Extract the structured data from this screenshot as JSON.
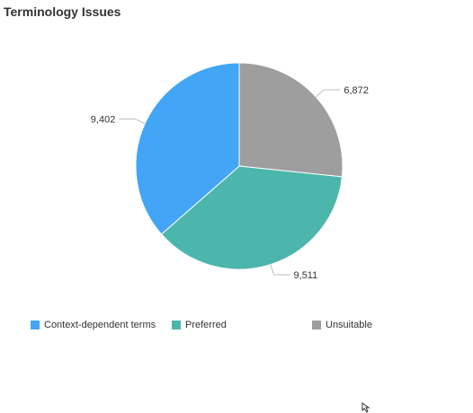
{
  "title": "Terminology Issues",
  "chart_data": {
    "type": "pie",
    "start_angle_deg": 0,
    "direction": "clockwise",
    "slices": [
      {
        "label": "Unsuitable",
        "value": 6872,
        "display": "6,872",
        "color": "#9e9e9e"
      },
      {
        "label": "Preferred",
        "value": 9511,
        "display": "9,511",
        "color": "#4db6ac"
      },
      {
        "label": "Context-dependent terms",
        "value": 9402,
        "display": "9,402",
        "color": "#42a5f5"
      }
    ],
    "legend": [
      {
        "label": "Context-dependent terms",
        "color": "#42a5f5"
      },
      {
        "label": "Preferred",
        "color": "#4db6ac"
      },
      {
        "label": "Unsuitable",
        "color": "#9e9e9e"
      }
    ],
    "legend_position": "bottom",
    "data_labels": "outside"
  }
}
